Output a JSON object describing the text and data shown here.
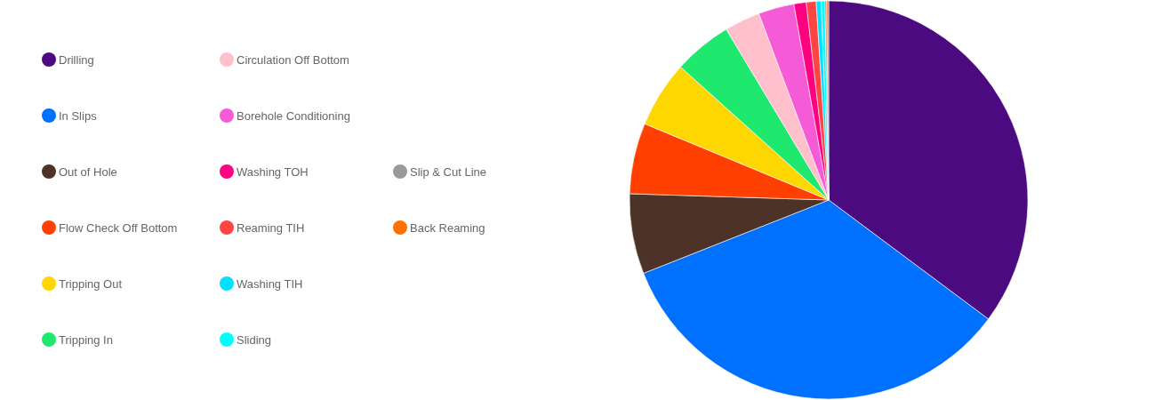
{
  "chart_data": {
    "type": "pie",
    "legend": "left",
    "categories": [
      "Drilling",
      "In Slips",
      "Out of Hole",
      "Flow Check Off Bottom",
      "Tripping Out",
      "Tripping In",
      "Circulation Off Bottom",
      "Borehole Conditioning",
      "Washing TOH",
      "Reaming TIH",
      "Washing TIH",
      "Sliding",
      "Slip & Cut Line",
      "Back Reaming"
    ],
    "values": [
      35.2,
      33.8,
      6.5,
      5.75,
      5.4,
      4.75,
      2.9,
      2.9,
      1.0,
      0.8,
      0.4,
      0.3,
      0.15,
      0.15
    ],
    "colors": [
      "#4b0a80",
      "#0070ff",
      "#4d3228",
      "#ff4000",
      "#ffd700",
      "#1ee86e",
      "#ffc0cb",
      "#f55bd6",
      "#ff007f",
      "#ff4444",
      "#00e0ff",
      "#00ffff",
      "#999999",
      "#ff7000"
    ]
  }
}
